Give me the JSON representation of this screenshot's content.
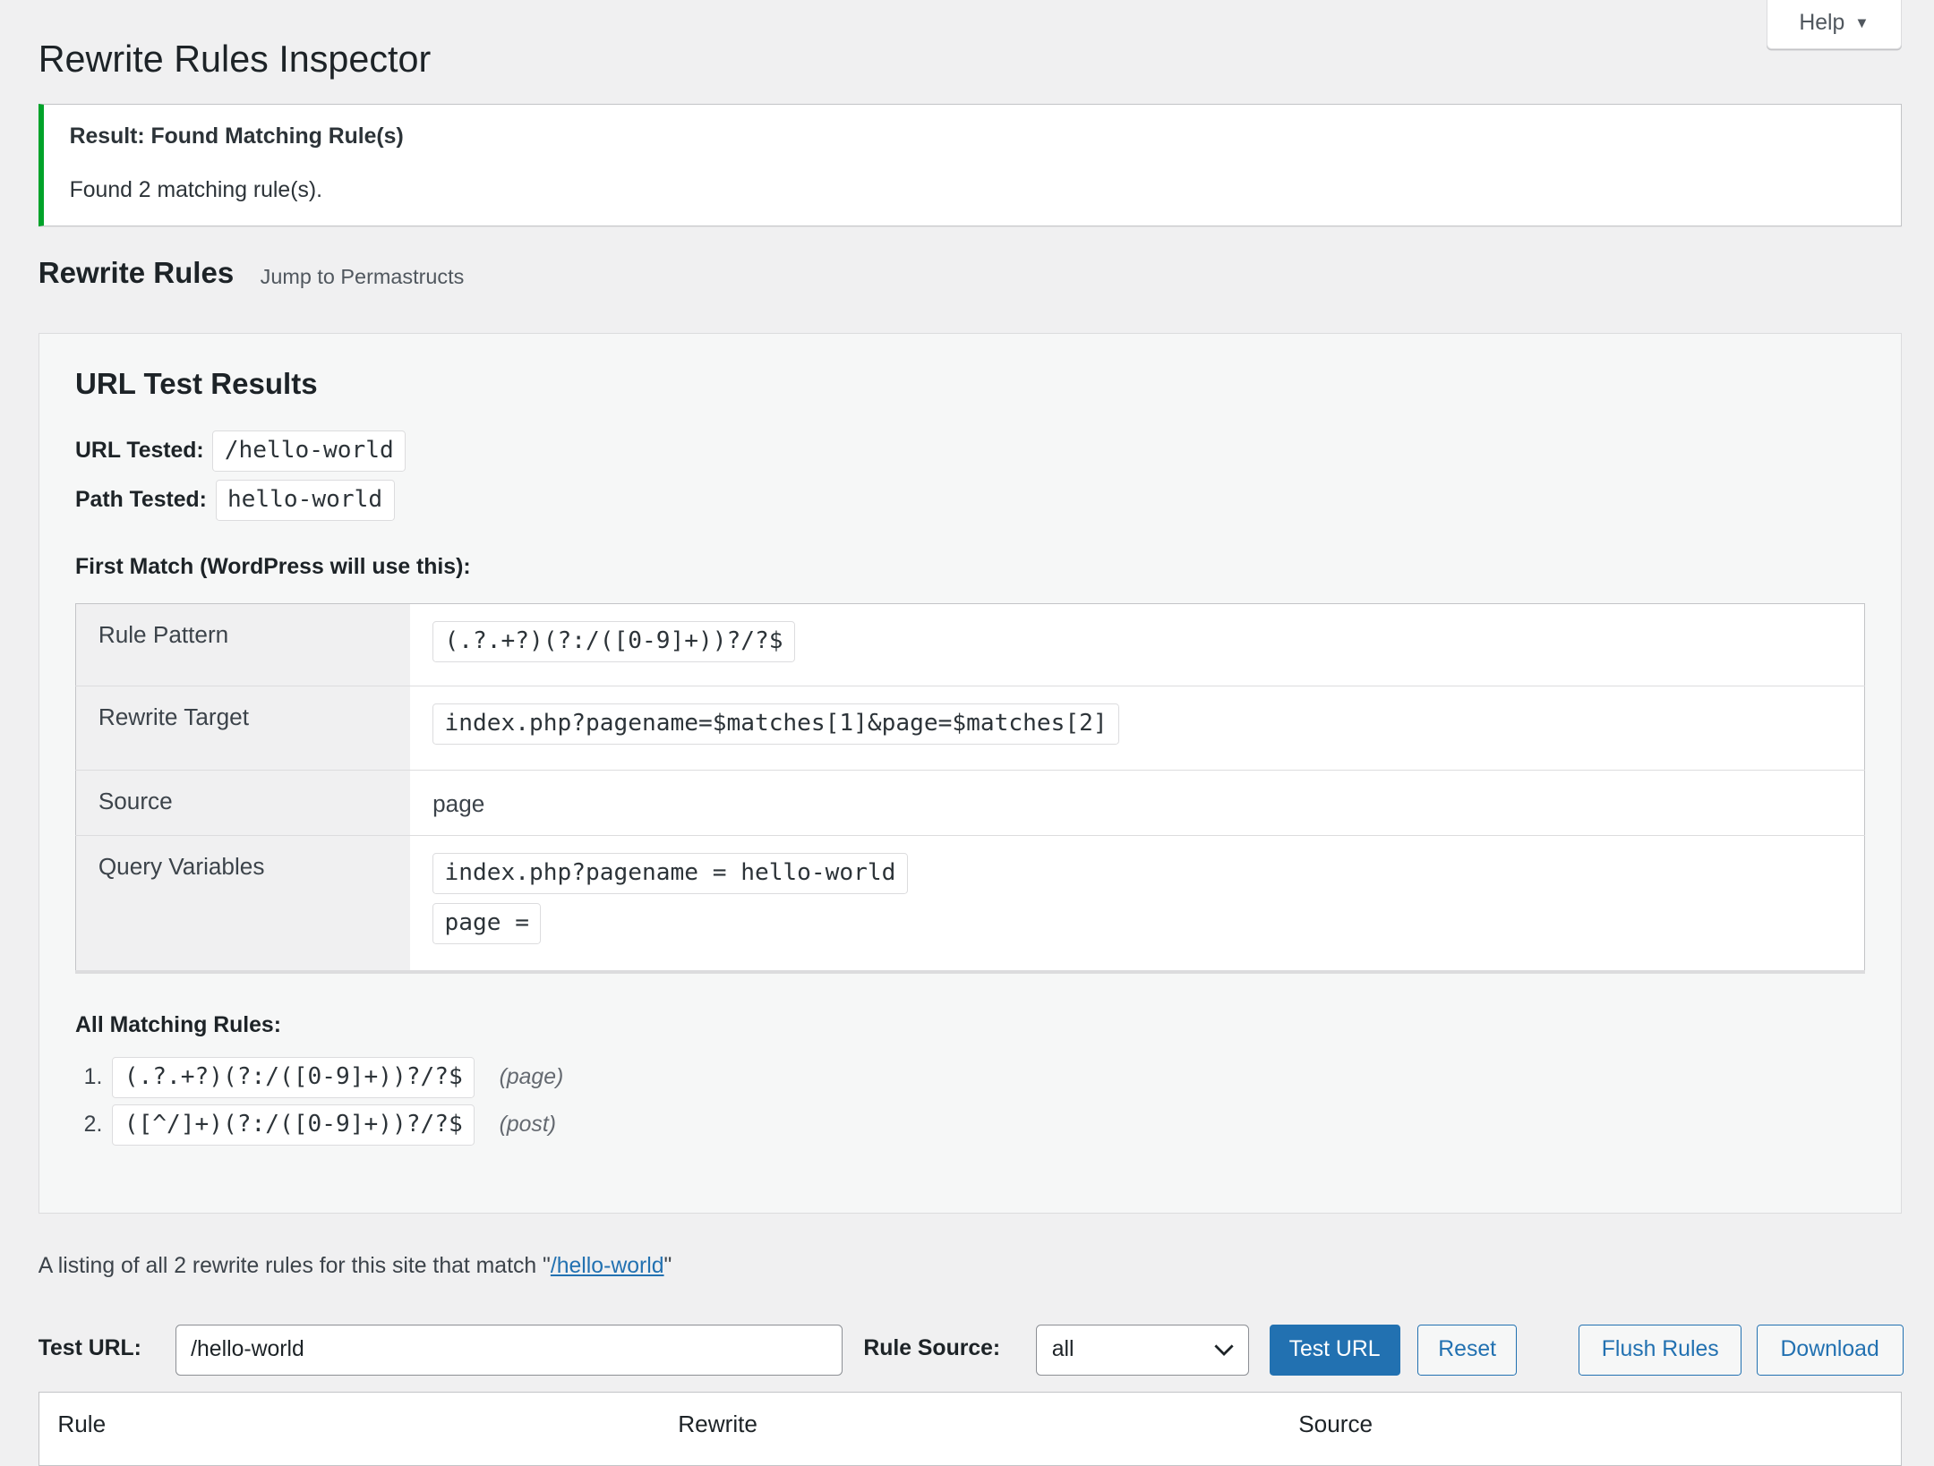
{
  "header": {
    "title": "Rewrite Rules Inspector",
    "help_label": "Help",
    "help_icon": "triangle-down-icon"
  },
  "notice": {
    "title": "Result: Found Matching Rule(s)",
    "message": "Found 2 matching rule(s).",
    "accent_color": "#00a32a"
  },
  "section": {
    "title": "Rewrite Rules",
    "jump_link": "Jump to Permastructs"
  },
  "results": {
    "title": "URL Test Results",
    "url_tested_label": "URL Tested:",
    "url_tested": "/hello-world",
    "path_tested_label": "Path Tested:",
    "path_tested": "hello-world",
    "first_match_label": "First Match (WordPress will use this):",
    "first_match": {
      "rule_pattern_label": "Rule Pattern",
      "rule_pattern": "(.?.+?)(?:/([0-9]+))?/?$",
      "rewrite_target_label": "Rewrite Target",
      "rewrite_target": "index.php?pagename=$matches[1]&page=$matches[2]",
      "source_label": "Source",
      "source": "page",
      "query_vars_label": "Query Variables",
      "query_vars": [
        "index.php?pagename = hello-world",
        "page ="
      ]
    },
    "all_matching_label": "All Matching Rules:",
    "all_matching": [
      {
        "num": "1.",
        "rule": "(.?.+?)(?:/([0-9]+))?/?$",
        "source": "(page)"
      },
      {
        "num": "2.",
        "rule": "([^/]+)(?:/([0-9]+))?/?$",
        "source": "(post)"
      }
    ]
  },
  "listing": {
    "prefix": "A listing of all 2 rewrite rules for this site that match \"",
    "link": "/hello-world",
    "suffix": "\""
  },
  "form": {
    "test_url_label": "Test URL:",
    "test_url_value": "/hello-world",
    "rule_source_label": "Rule Source:",
    "rule_source_value": "all",
    "test_button": "Test URL",
    "reset_button": "Reset",
    "flush_button": "Flush Rules",
    "download_button": "Download",
    "primary_color": "#2271b1"
  },
  "rules_table": {
    "columns": [
      "Rule",
      "Rewrite",
      "Source"
    ]
  }
}
